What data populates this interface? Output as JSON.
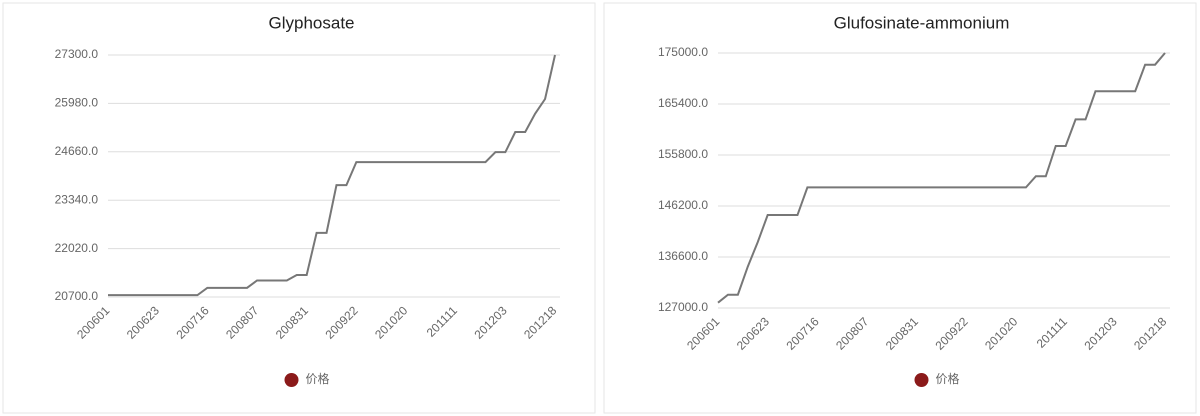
{
  "chart_data": [
    {
      "type": "line",
      "title": "Glyphosate",
      "categories": [
        "200601",
        null,
        null,
        null,
        null,
        "200623",
        null,
        null,
        null,
        null,
        "200716",
        null,
        null,
        null,
        null,
        "200807",
        null,
        null,
        null,
        null,
        "200831",
        null,
        null,
        null,
        null,
        "200922",
        null,
        null,
        null,
        null,
        "201020",
        null,
        null,
        null,
        null,
        "201111",
        null,
        null,
        null,
        null,
        "201203",
        null,
        null,
        null,
        null,
        "201218"
      ],
      "series": [
        {
          "name": "价格",
          "color": "#8b1a1a",
          "line_color": "#777777",
          "values": [
            20750,
            20750,
            20750,
            20750,
            20750,
            20750,
            20750,
            20750,
            20750,
            20750,
            20950,
            20950,
            20950,
            20950,
            20950,
            21150,
            21150,
            21150,
            21150,
            21300,
            21300,
            22450,
            22450,
            23750,
            23750,
            24380,
            24380,
            24380,
            24380,
            24380,
            24380,
            24380,
            24380,
            24380,
            24380,
            24380,
            24380,
            24380,
            24380,
            24650,
            24650,
            25200,
            25200,
            25700,
            26100,
            27300
          ]
        }
      ],
      "ylim": [
        20700,
        27300
      ],
      "yticks": [
        {
          "value": 20700,
          "label": "20700.0"
        },
        {
          "value": 22020,
          "label": "22020.0"
        },
        {
          "value": 23340,
          "label": "23340.0"
        },
        {
          "value": 24660,
          "label": "24660.0"
        },
        {
          "value": 25980,
          "label": "25980.0"
        },
        {
          "value": 27300,
          "label": "27300.0"
        }
      ],
      "grid": true,
      "legend": "bottom"
    },
    {
      "type": "line",
      "title": "Glufosinate-ammonium",
      "categories": [
        "200601",
        null,
        null,
        null,
        null,
        "200623",
        null,
        null,
        null,
        null,
        "200716",
        null,
        null,
        null,
        null,
        "200807",
        null,
        null,
        null,
        null,
        "200831",
        null,
        null,
        null,
        null,
        "200922",
        null,
        null,
        null,
        null,
        "201020",
        null,
        null,
        null,
        null,
        "201111",
        null,
        null,
        null,
        null,
        "201203",
        null,
        null,
        null,
        null,
        "201218"
      ],
      "series": [
        {
          "name": "价格",
          "color": "#8b1a1a",
          "line_color": "#777777",
          "values": [
            128000,
            129500,
            129500,
            134800,
            139400,
            144500,
            144500,
            144500,
            144500,
            149700,
            149700,
            149700,
            149700,
            149700,
            149700,
            149700,
            149700,
            149700,
            149700,
            149700,
            149700,
            149700,
            149700,
            149700,
            149700,
            149700,
            149700,
            149700,
            149700,
            149700,
            149700,
            149700,
            151800,
            151800,
            157500,
            157500,
            162500,
            162500,
            167800,
            167800,
            167800,
            167800,
            167800,
            172800,
            172800,
            175000
          ]
        }
      ],
      "ylim": [
        127000,
        175000
      ],
      "yticks": [
        {
          "value": 127000,
          "label": "127000.0"
        },
        {
          "value": 136600,
          "label": "136600.0"
        },
        {
          "value": 146200,
          "label": "146200.0"
        },
        {
          "value": 155800,
          "label": "155800.0"
        },
        {
          "value": 165400,
          "label": "165400.0"
        },
        {
          "value": 175000,
          "label": "175000.0"
        }
      ],
      "grid": true,
      "legend": "bottom"
    }
  ]
}
